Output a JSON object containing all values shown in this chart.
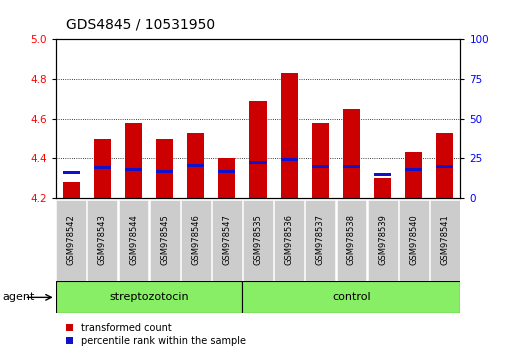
{
  "title": "GDS4845 / 10531950",
  "samples": [
    "GSM978542",
    "GSM978543",
    "GSM978544",
    "GSM978545",
    "GSM978546",
    "GSM978547",
    "GSM978535",
    "GSM978536",
    "GSM978537",
    "GSM978538",
    "GSM978539",
    "GSM978540",
    "GSM978541"
  ],
  "transformed_count": [
    4.28,
    4.5,
    4.58,
    4.5,
    4.53,
    4.4,
    4.69,
    4.83,
    4.58,
    4.65,
    4.3,
    4.43,
    4.53
  ],
  "percentile_rank": [
    4.32,
    4.345,
    4.335,
    4.325,
    4.355,
    4.325,
    4.37,
    4.385,
    4.35,
    4.35,
    4.31,
    4.335,
    4.35
  ],
  "ylim_left": [
    4.2,
    5.0
  ],
  "ylim_right": [
    0,
    100
  ],
  "yticks_left": [
    4.2,
    4.4,
    4.6,
    4.8,
    5.0
  ],
  "yticks_right": [
    0,
    25,
    50,
    75,
    100
  ],
  "bar_color": "#cc0000",
  "percentile_color": "#1111cc",
  "bar_width": 0.55,
  "streptozotocin_count": 6,
  "control_count": 7,
  "group_color": "#88ee66",
  "group_border_color": "#000000",
  "tick_box_color": "#cccccc",
  "tick_box_border": "#888888",
  "legend_items": [
    {
      "label": "transformed count",
      "color": "#cc0000"
    },
    {
      "label": "percentile rank within the sample",
      "color": "#1111cc"
    }
  ],
  "background_color": "#ffffff",
  "title_fontsize": 10,
  "tick_fontsize": 7.5,
  "label_fontsize": 8,
  "sample_fontsize": 6
}
